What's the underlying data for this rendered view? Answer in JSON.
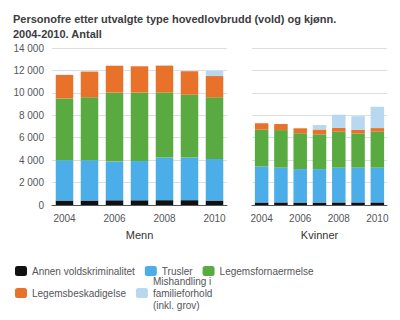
{
  "chart_data": [
    {
      "type": "bar",
      "title": "Personofre etter utvalgte type hovedlovbrudd (vold) og kjønn.\n2004-2010. Antall",
      "xlabel": "Menn",
      "categories": [
        "2004",
        null,
        "2006",
        null,
        "2008",
        null,
        "2010"
      ],
      "stacked": true,
      "grid": true,
      "legend": "bottom",
      "ylim": [
        0,
        14000
      ],
      "yticks": [
        0,
        {
          "value": 2000,
          "label": "2 000"
        },
        {
          "value": 4000,
          "label": "4 000"
        },
        {
          "value": 6000,
          "label": "6 000"
        },
        {
          "value": 8000,
          "label": "8 000"
        },
        {
          "value": 10000,
          "label": "10 000"
        },
        {
          "value": 12000,
          "label": "12 000"
        },
        {
          "value": 14000,
          "label": "14 000"
        }
      ],
      "series": [
        {
          "name": "Annen voldskriminalitet",
          "color": "#111111",
          "values": [
            400,
            400,
            420,
            420,
            430,
            430,
            400
          ]
        },
        {
          "name": "Trusler",
          "color": "#4baee8",
          "values": [
            3600,
            3600,
            3450,
            3500,
            3800,
            3800,
            3700
          ]
        },
        {
          "name": "Legemsfornaermelse",
          "color": "#5aaa42",
          "values": [
            5500,
            5600,
            6150,
            6100,
            5800,
            5600,
            5500
          ]
        },
        {
          "name": "Legemsbeskadigelse",
          "color": "#e8722a",
          "values": [
            2100,
            2300,
            2400,
            2350,
            2400,
            2100,
            1900
          ]
        },
        {
          "name": "Mishandling i\nfamilieforhold\n(inkl. grov)",
          "color": "#b8d8f0",
          "values": [
            0,
            0,
            0,
            0,
            0,
            0,
            450
          ]
        }
      ]
    },
    {
      "type": "bar",
      "xlabel": "Kvinner",
      "categories": [
        "2004",
        null,
        "2006",
        null,
        "2008",
        null,
        "2010"
      ],
      "stacked": true,
      "grid": true,
      "tick_labels": "x",
      "ylim": [
        0,
        14000
      ],
      "yticks": [
        0,
        {
          "value": 2000,
          "label": "2 000"
        },
        {
          "value": 4000,
          "label": "4 000"
        },
        {
          "value": 6000,
          "label": "6 000"
        },
        {
          "value": 8000,
          "label": "8 000"
        },
        {
          "value": 10000,
          "label": "10 000"
        },
        {
          "value": 12000,
          "label": "12 000"
        },
        {
          "value": 14000,
          "label": "14 000"
        }
      ],
      "series": [
        {
          "name": "Annen voldskriminalitet",
          "color": "#111111",
          "values": [
            230,
            230,
            220,
            220,
            230,
            230,
            230
          ]
        },
        {
          "name": "Trusler",
          "color": "#4baee8",
          "values": [
            3200,
            3100,
            2980,
            2980,
            3100,
            3100,
            3100
          ]
        },
        {
          "name": "Legemsfornaermelse",
          "color": "#5aaa42",
          "values": [
            3280,
            3350,
            3200,
            3100,
            3200,
            3050,
            3200
          ]
        },
        {
          "name": "Legemsbeskadigelse",
          "color": "#e8722a",
          "values": [
            590,
            540,
            440,
            430,
            340,
            340,
            330
          ]
        },
        {
          "name": "Mishandling i\nfamilieforhold\n(inkl. grov)",
          "color": "#b8d8f0",
          "values": [
            0,
            0,
            0,
            400,
            1180,
            1200,
            1900
          ]
        }
      ]
    }
  ]
}
